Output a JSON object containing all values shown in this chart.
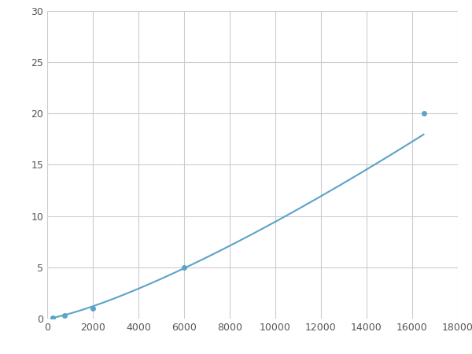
{
  "x": [
    250,
    750,
    2000,
    6000,
    16500
  ],
  "y": [
    0.1,
    0.3,
    1.0,
    5.0,
    20.0
  ],
  "line_color": "#5ba3c9",
  "marker_color": "#5ba3c9",
  "marker_size": 5,
  "xlim": [
    0,
    18000
  ],
  "ylim": [
    0,
    30
  ],
  "xticks": [
    0,
    2000,
    4000,
    6000,
    8000,
    10000,
    12000,
    14000,
    16000,
    18000
  ],
  "yticks": [
    0,
    5,
    10,
    15,
    20,
    25,
    30
  ],
  "grid_color": "#cccccc",
  "background_color": "#ffffff",
  "linewidth": 1.5
}
